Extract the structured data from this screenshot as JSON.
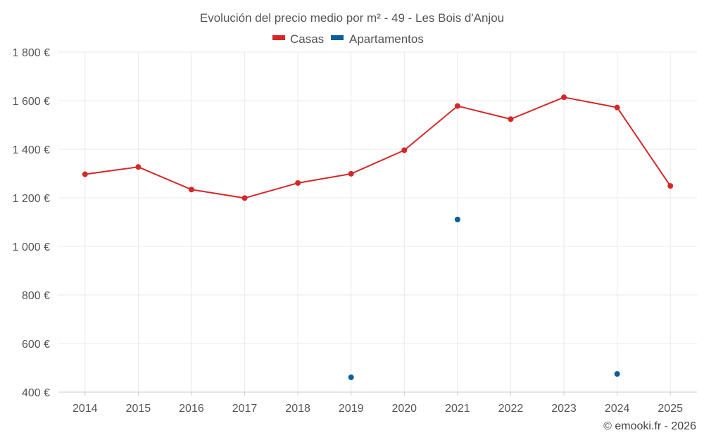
{
  "chart_data": {
    "type": "line",
    "title": "Evolución del precio medio por m² - 49 - Les Bois d'Anjou",
    "categories": [
      "2014",
      "2015",
      "2016",
      "2017",
      "2018",
      "2019",
      "2020",
      "2021",
      "2022",
      "2023",
      "2024",
      "2025"
    ],
    "series": [
      {
        "name": "Casas",
        "color": "#d62728",
        "mode": "line+markers",
        "values": [
          1297,
          1327,
          1234,
          1199,
          1261,
          1299,
          1396,
          1578,
          1524,
          1614,
          1572,
          1249
        ]
      },
      {
        "name": "Apartamentos",
        "color": "#0a5f9a",
        "mode": "markers",
        "values": [
          null,
          null,
          null,
          null,
          null,
          461,
          null,
          1111,
          null,
          null,
          475,
          null
        ]
      }
    ],
    "yticks": [
      400,
      600,
      800,
      1000,
      1200,
      1400,
      1600,
      1800
    ],
    "ytick_labels": [
      "400 €",
      "600 €",
      "800 €",
      "1 000 €",
      "1 200 €",
      "1 400 €",
      "1 600 €",
      "1 800 €"
    ],
    "ylim": [
      400,
      1800
    ],
    "xlabel": "",
    "ylabel": "",
    "legend_position": "top-center",
    "grid": true
  },
  "credit": "© emooki.fr - 2026"
}
